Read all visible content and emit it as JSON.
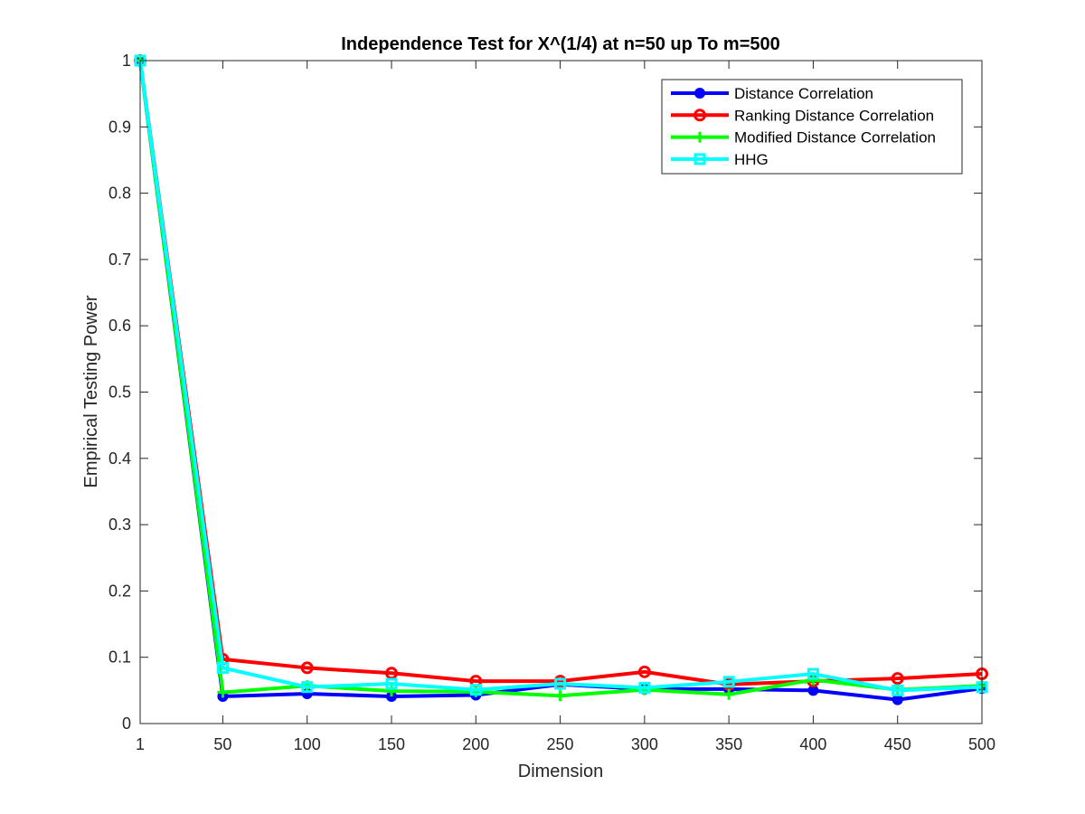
{
  "chart_data": {
    "type": "line",
    "title": "Independence Test for X^(1/4) at n=50 up To m=500",
    "xlabel": "Dimension",
    "ylabel": "Empirical Testing Power",
    "x": [
      1,
      50,
      100,
      150,
      200,
      250,
      300,
      350,
      400,
      450,
      500
    ],
    "x_tick_labels": [
      "1",
      "50",
      "100",
      "150",
      "200",
      "250",
      "300",
      "350",
      "400",
      "450",
      "500"
    ],
    "xlim": [
      1,
      500
    ],
    "ylim": [
      0,
      1
    ],
    "y_ticks": [
      0,
      0.1,
      0.2,
      0.3,
      0.4,
      0.5,
      0.6,
      0.7,
      0.8,
      0.9,
      1
    ],
    "y_tick_labels": [
      "0",
      "0.1",
      "0.2",
      "0.3",
      "0.4",
      "0.5",
      "0.6",
      "0.7",
      "0.8",
      "0.9",
      "1"
    ],
    "grid": false,
    "legend_position": "top-right",
    "series": [
      {
        "name": "Distance Correlation",
        "color": "#0000ff",
        "marker": "dot",
        "values": [
          1,
          0.041,
          0.045,
          0.041,
          0.043,
          0.059,
          0.052,
          0.052,
          0.05,
          0.036,
          0.053
        ]
      },
      {
        "name": "Ranking Distance Correlation",
        "color": "#ff0000",
        "marker": "circle",
        "values": [
          1,
          0.097,
          0.084,
          0.076,
          0.064,
          0.064,
          0.078,
          0.059,
          0.064,
          0.068,
          0.075
        ]
      },
      {
        "name": "Modified Distance Correlation",
        "color": "#00ff00",
        "marker": "plus",
        "values": [
          1,
          0.047,
          0.057,
          0.049,
          0.048,
          0.042,
          0.051,
          0.044,
          0.066,
          0.051,
          0.057
        ]
      },
      {
        "name": "HHG",
        "color": "#00ffff",
        "marker": "square",
        "values": [
          1,
          0.084,
          0.055,
          0.06,
          0.051,
          0.06,
          0.054,
          0.063,
          0.075,
          0.05,
          0.055
        ]
      }
    ]
  }
}
